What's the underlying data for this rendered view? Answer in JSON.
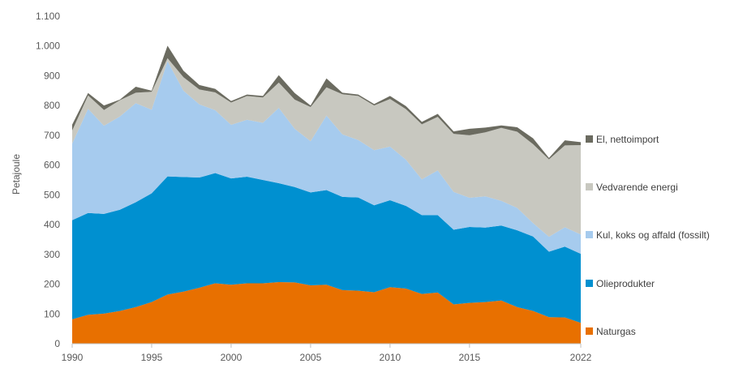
{
  "chart_data": {
    "type": "area",
    "stacked": true,
    "ylabel": "Petajoule",
    "xlabel": "",
    "ylim": [
      0,
      1100
    ],
    "yticks": [
      0,
      100,
      200,
      300,
      400,
      500,
      600,
      700,
      800,
      900,
      1000,
      1100
    ],
    "ytick_labels": [
      "0",
      "100",
      "200",
      "300",
      "400",
      "500",
      "600",
      "700",
      "800",
      "900",
      "1.000",
      "1.100"
    ],
    "xlim": [
      1990,
      2022
    ],
    "xticks": [
      1990,
      1995,
      2000,
      2005,
      2010,
      2015,
      2022
    ],
    "xtick_labels": [
      "1990",
      "1995",
      "2000",
      "2005",
      "2010",
      "2015",
      "2022"
    ],
    "grid": false,
    "legend_position": "right",
    "x": [
      1990,
      1991,
      1992,
      1993,
      1994,
      1995,
      1996,
      1997,
      1998,
      1999,
      2000,
      2001,
      2002,
      2003,
      2004,
      2005,
      2006,
      2007,
      2008,
      2009,
      2010,
      2011,
      2012,
      2013,
      2014,
      2015,
      2016,
      2017,
      2018,
      2019,
      2020,
      2021,
      2022
    ],
    "series": [
      {
        "name": "Naturgas",
        "color": "#e87000",
        "values": [
          82,
          97,
          101,
          110,
          123,
          140,
          165,
          175,
          188,
          203,
          198,
          203,
          203,
          207,
          206,
          196,
          198,
          180,
          178,
          173,
          190,
          185,
          167,
          172,
          132,
          137,
          140,
          145,
          123,
          110,
          89,
          88,
          70
        ]
      },
      {
        "name": "Olieprodukter",
        "color": "#0090d0",
        "values": [
          333,
          342,
          335,
          340,
          352,
          365,
          397,
          385,
          370,
          370,
          357,
          358,
          347,
          332,
          320,
          312,
          318,
          313,
          313,
          292,
          292,
          278,
          265,
          260,
          251,
          255,
          250,
          252,
          258,
          250,
          220,
          238,
          232
        ]
      },
      {
        "name": "Kul, koks og affald (fossilt)",
        "color": "#a6cbee",
        "values": [
          257,
          350,
          296,
          313,
          333,
          281,
          387,
          290,
          246,
          211,
          180,
          191,
          192,
          253,
          196,
          172,
          250,
          210,
          193,
          185,
          180,
          155,
          120,
          150,
          127,
          98,
          105,
          83,
          75,
          45,
          50,
          65,
          65
        ]
      },
      {
        "name": "Vedvarende energi",
        "color": "#c8c8c0",
        "values": [
          44,
          45,
          53,
          55,
          35,
          60,
          10,
          45,
          50,
          60,
          75,
          80,
          85,
          85,
          98,
          115,
          95,
          135,
          148,
          150,
          160,
          170,
          185,
          180,
          195,
          210,
          215,
          245,
          256,
          265,
          260,
          275,
          300
        ]
      },
      {
        "name": "El, nettoimport",
        "color": "#6b6b60",
        "values": [
          20,
          8,
          15,
          2,
          20,
          4,
          42,
          22,
          15,
          12,
          5,
          5,
          5,
          25,
          22,
          5,
          30,
          5,
          5,
          5,
          10,
          10,
          8,
          10,
          8,
          22,
          16,
          8,
          15,
          20,
          5,
          17,
          10
        ]
      }
    ]
  }
}
